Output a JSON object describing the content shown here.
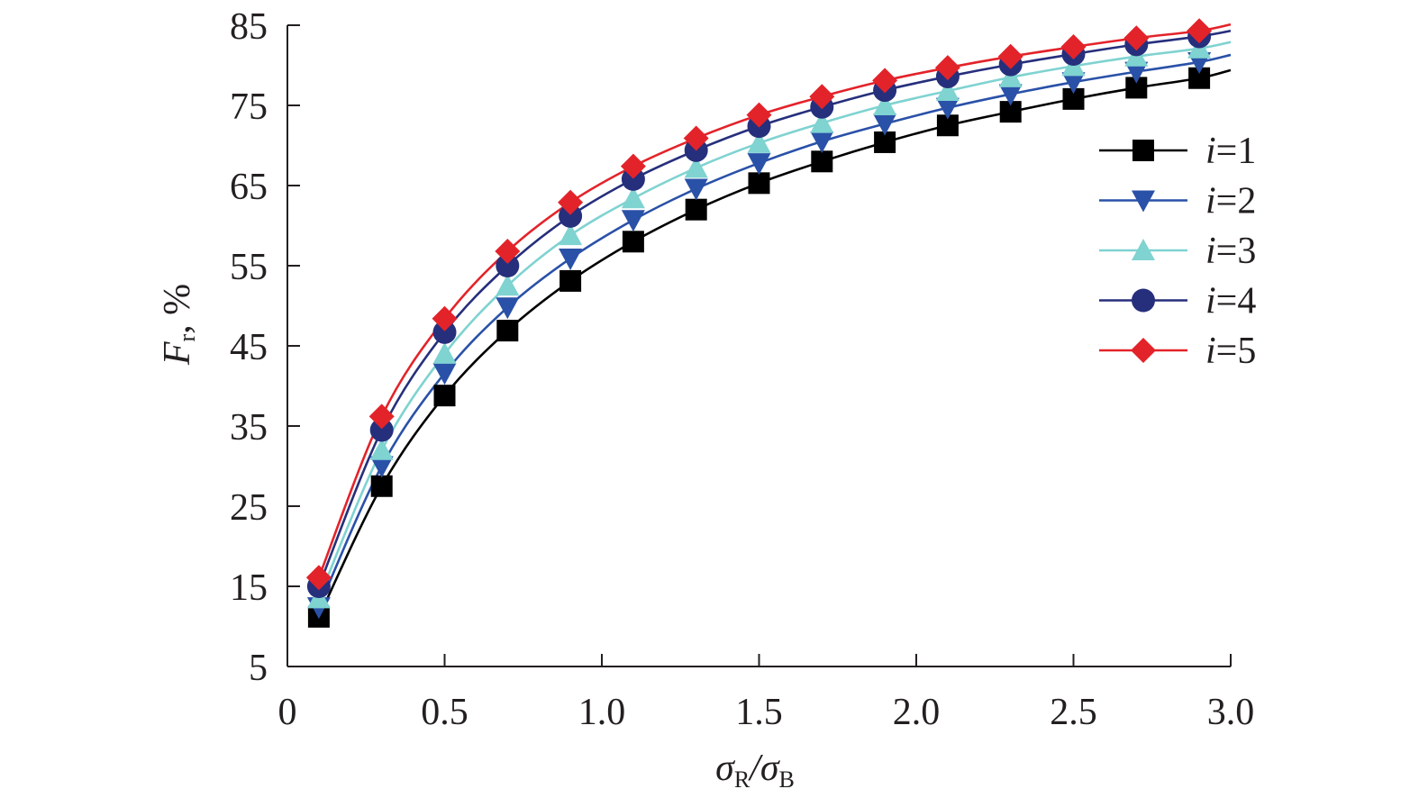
{
  "chart_data": {
    "type": "line",
    "title": "",
    "xlabel": {
      "main": "σ",
      "sub1": "R",
      "slash": "/σ",
      "sub2": "B",
      "full": "σR/σB"
    },
    "ylabel": {
      "main": "F",
      "sub": "r",
      "suffix": ", %",
      "full": "Fr, %"
    },
    "xlim": [
      0,
      3.0
    ],
    "ylim": [
      5,
      85
    ],
    "xticks": [
      0,
      0.5,
      1.0,
      1.5,
      2.0,
      2.5,
      3.0
    ],
    "xtick_labels": [
      "0",
      "0.5",
      "1.0",
      "1.5",
      "2.0",
      "2.5",
      "3.0"
    ],
    "yticks": [
      5,
      15,
      25,
      35,
      45,
      55,
      65,
      75,
      85
    ],
    "ytick_labels": [
      "5",
      "15",
      "25",
      "35",
      "45",
      "55",
      "65",
      "75",
      "85"
    ],
    "grid": false,
    "legend_position": "right",
    "x": [
      0.1,
      0.3,
      0.5,
      0.7,
      0.9,
      1.1,
      1.3,
      1.5,
      1.7,
      1.9,
      2.1,
      2.3,
      2.5,
      2.7,
      2.9
    ],
    "x_line_end": 3.0,
    "series": [
      {
        "name": "i=1",
        "italic": "i",
        "suffix": "=1",
        "color": "#000000",
        "marker": "square",
        "values": [
          11.2,
          27.5,
          38.8,
          46.9,
          53.1,
          58.0,
          62.0,
          65.3,
          68.0,
          70.4,
          72.5,
          74.2,
          75.8,
          77.2,
          78.4
        ],
        "end_value": 79.4
      },
      {
        "name": "i=2",
        "italic": "i",
        "suffix": "=2",
        "color": "#2a51a8",
        "marker": "triangle-down",
        "values": [
          12.4,
          30.0,
          41.6,
          49.8,
          55.9,
          60.7,
          64.6,
          67.8,
          70.5,
          72.7,
          74.7,
          76.4,
          77.9,
          79.2,
          80.4
        ],
        "end_value": 81.3
      },
      {
        "name": "i=3",
        "italic": "i",
        "suffix": "=3",
        "color": "#7fd3d1",
        "marker": "triangle-up",
        "values": [
          13.5,
          32.0,
          44.0,
          52.5,
          58.8,
          63.4,
          67.2,
          70.3,
          72.8,
          75.0,
          76.8,
          78.5,
          79.9,
          81.1,
          82.1
        ],
        "end_value": 82.9
      },
      {
        "name": "i=4",
        "italic": "i",
        "suffix": "=4",
        "color": "#262f7c",
        "marker": "circle",
        "values": [
          15.0,
          34.5,
          46.7,
          55.0,
          61.2,
          65.8,
          69.4,
          72.4,
          74.8,
          76.9,
          78.6,
          80.1,
          81.4,
          82.6,
          83.6
        ],
        "end_value": 84.3
      },
      {
        "name": "i=5",
        "italic": "i",
        "suffix": "=5",
        "color": "#e3232a",
        "marker": "diamond",
        "values": [
          16.1,
          36.2,
          48.4,
          56.8,
          62.9,
          67.4,
          70.9,
          73.8,
          76.1,
          78.1,
          79.7,
          81.1,
          82.3,
          83.4,
          84.3
        ],
        "end_value": 85.1
      }
    ]
  }
}
